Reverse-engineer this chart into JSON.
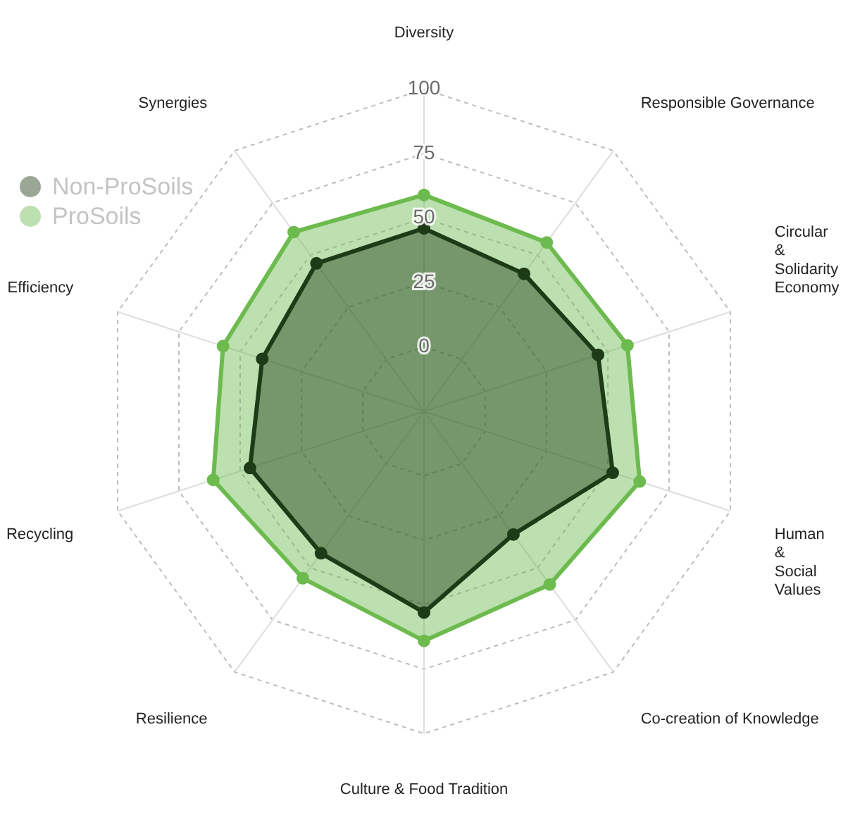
{
  "chart_data": {
    "type": "radar",
    "categories": [
      "Diversity",
      "Responsible Governance",
      "Circular\n&\nSolidarity\nEconomy",
      "Human\n&\nSocial\nValues",
      "Co-creation of Knowledge",
      "Culture & Food Tradition",
      "Resilience",
      "Recycling",
      "Efficiency",
      "Synergies"
    ],
    "series": [
      {
        "name": "Non-ProSoils",
        "color": "#1e3b18",
        "values": [
          46,
          41,
          46,
          52,
          34,
          53,
          43,
          46,
          41,
          46
        ]
      },
      {
        "name": "ProSoils",
        "color": "#6dbb4f",
        "values": [
          59,
          56,
          58,
          63,
          58,
          64,
          55,
          61,
          57,
          61
        ]
      }
    ],
    "ylim": [
      -25,
      100
    ],
    "yticks": [
      0,
      25,
      50,
      75,
      100
    ],
    "grid": true,
    "legend": "top left",
    "marker": "circle",
    "line_style": "solid"
  }
}
